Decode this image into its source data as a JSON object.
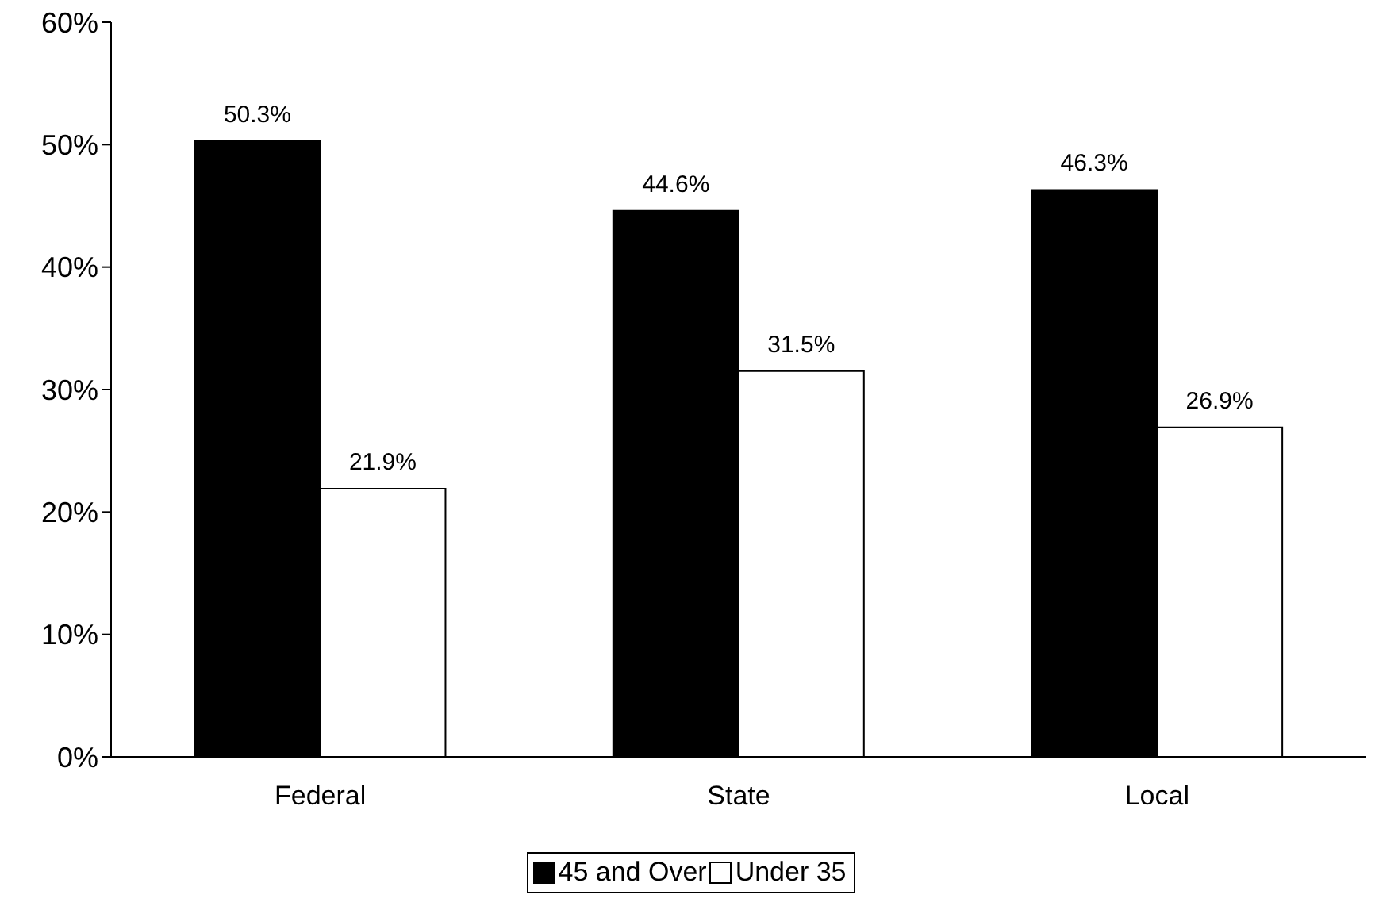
{
  "chart_data": {
    "type": "bar",
    "categories": [
      "Federal",
      "State",
      "Local"
    ],
    "series": [
      {
        "name": "45 and Over",
        "color": "#000000",
        "values": [
          50.3,
          44.6,
          46.3
        ],
        "value_labels": [
          "50.3%",
          "44.6%",
          "46.3%"
        ]
      },
      {
        "name": "Under 35",
        "color": "#ffffff",
        "values": [
          21.9,
          31.5,
          26.9
        ],
        "value_labels": [
          "21.9%",
          "31.5%",
          "26.9%"
        ]
      }
    ],
    "ylim": [
      0,
      60
    ],
    "yticks": [
      {
        "value": 0,
        "label": "0%"
      },
      {
        "value": 10,
        "label": "10%"
      },
      {
        "value": 20,
        "label": "20%"
      },
      {
        "value": 30,
        "label": "30%"
      },
      {
        "value": 40,
        "label": "40%"
      },
      {
        "value": 50,
        "label": "50%"
      },
      {
        "value": 60,
        "label": "60%"
      }
    ],
    "grid": false,
    "legend": "bottom"
  }
}
